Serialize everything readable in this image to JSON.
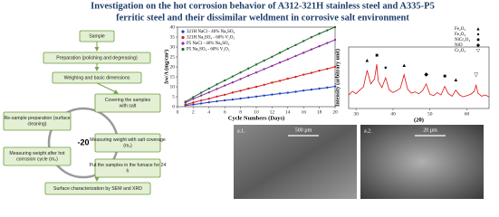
{
  "title": {
    "lines": [
      "Investigation on the hot corrosion behavior of A312-321H stainless steel and A335-P5",
      "ferritic steel and their dissimilar weldment in corrosive salt environment"
    ]
  },
  "flowchart": {
    "nodes": [
      {
        "lines": [
          "Sample"
        ]
      },
      {
        "lines": [
          "Preparation (polishing and degreasing)"
        ]
      },
      {
        "lines": [
          "Weighing and basic dimensions"
        ]
      },
      {
        "lines": [
          "Covering the samples",
          "with salt"
        ]
      },
      {
        "lines": [
          "Measuring weight with salt coverage",
          "(m₁)"
        ]
      },
      {
        "lines": [
          "Put the samples in the furnace for 24",
          "h"
        ]
      },
      {
        "lines": [
          "Measuring weight after hot",
          "corrosion cycle (m₂)"
        ]
      },
      {
        "lines": [
          "Re-sample preparation  (surface",
          "cleaning)"
        ]
      },
      {
        "lines": [
          "Surface characterization by SEM and XRD"
        ]
      }
    ],
    "cycle": "-20"
  },
  "images": [
    {
      "label": "a.1.",
      "scale": "500 µm"
    },
    {
      "label": "a.2.",
      "scale": "20 µm"
    }
  ],
  "chart_data": [
    {
      "type": "line",
      "x_label": "Cycle Numbers (Days)",
      "y_label": "Δw/A (mg/cm²)",
      "x": [
        1,
        2,
        3,
        4,
        5,
        6,
        7,
        8,
        9,
        10,
        11,
        12,
        13,
        14,
        15,
        16,
        17,
        18,
        19,
        20
      ],
      "xlim": [
        0,
        20
      ],
      "xticks": [
        0,
        2,
        4,
        6,
        8,
        10,
        12,
        14,
        16,
        18,
        20
      ],
      "ylim": [
        0,
        40
      ],
      "yticks": [
        0,
        5,
        10,
        15,
        20,
        25,
        30,
        35,
        40
      ],
      "series": [
        {
          "name": "321H   NaCl     - 46% Na₂SO₄",
          "color": "#1f3fbf",
          "values": [
            0.6,
            1.1,
            1.6,
            2.2,
            2.7,
            3.2,
            3.6,
            4.1,
            4.6,
            5.1,
            5.6,
            6.1,
            6.6,
            7.0,
            7.5,
            8.1,
            8.6,
            9.1,
            9.6,
            10.2
          ]
        },
        {
          "name": "321H   Na₂SO₄ - 60% V₂O₅",
          "color": "#d42020",
          "values": [
            1.0,
            2.1,
            3.1,
            4.0,
            5.1,
            6.0,
            7.1,
            8.0,
            9.1,
            10.0,
            11.0,
            12.1,
            13.0,
            14.1,
            15.0,
            16.1,
            17.0,
            18.1,
            19.0,
            20.1
          ]
        },
        {
          "name": "P5      NaCl     - 46% Na₂SO₄",
          "color": "#8a2c9c",
          "values": [
            2.0,
            3.9,
            5.6,
            7.2,
            8.9,
            10.6,
            12.2,
            13.9,
            15.6,
            17.2,
            18.9,
            20.5,
            22.2,
            23.8,
            25.5,
            27.1,
            28.8,
            30.4,
            32.0,
            33.6
          ]
        },
        {
          "name": "P5      Na₂SO₄ - 60% V₂O₅",
          "color": "#1f6b2a",
          "values": [
            2.5,
            4.8,
            7.0,
            9.1,
            11.2,
            13.2,
            15.2,
            17.2,
            19.2,
            21.2,
            23.2,
            25.1,
            27.1,
            29.1,
            31.0,
            33.0,
            34.9,
            36.7,
            38.4,
            40.0
          ]
        }
      ]
    },
    {
      "type": "line",
      "x_label": "(2θ)",
      "y_label": "Intensity (arbitrary unit)",
      "x": [
        28,
        29,
        30,
        31,
        32,
        33,
        34,
        35,
        35.6,
        36,
        37,
        38,
        39,
        40,
        41,
        42,
        43,
        44,
        45,
        46,
        47,
        48,
        49,
        50,
        51,
        52,
        53,
        54,
        55,
        56,
        57,
        58,
        59,
        60,
        61,
        62,
        62.5,
        63,
        64,
        65,
        66
      ],
      "xlim": [
        28,
        66
      ],
      "xticks": [
        30,
        40,
        50,
        60
      ],
      "ylim": [
        0,
        100
      ],
      "series": [
        {
          "name": "XRD",
          "color": "#e01010",
          "values": [
            22,
            28,
            24,
            30,
            35,
            62,
            40,
            48,
            72,
            45,
            34,
            50,
            30,
            26,
            29,
            33,
            55,
            31,
            25,
            27,
            24,
            29,
            40,
            23,
            21,
            26,
            22,
            36,
            24,
            20,
            30,
            22,
            19,
            21,
            23,
            28,
            38,
            25,
            20,
            22,
            19
          ]
        }
      ],
      "legend": [
        {
          "symbol": "▲",
          "name": "Fe₂O₃"
        },
        {
          "symbol": "●",
          "name": "Fe₃O₄"
        },
        {
          "symbol": "■",
          "name": "NiCr₂O₄"
        },
        {
          "symbol": "◆",
          "name": "NiO"
        },
        {
          "symbol": "▽",
          "name": "Cr₂O₃"
        }
      ],
      "peaks": [
        {
          "x": 33,
          "y": 78,
          "symbol": "▲"
        },
        {
          "x": 35.6,
          "y": 86,
          "symbol": "■"
        },
        {
          "x": 38,
          "y": 66,
          "symbol": "●"
        },
        {
          "x": 43,
          "y": 70,
          "symbol": "▲"
        },
        {
          "x": 49,
          "y": 55,
          "symbol": "◆"
        },
        {
          "x": 54,
          "y": 52,
          "symbol": "■"
        },
        {
          "x": 57,
          "y": 46,
          "symbol": "▲"
        },
        {
          "x": 62.5,
          "y": 54,
          "symbol": "▽"
        }
      ]
    }
  ]
}
